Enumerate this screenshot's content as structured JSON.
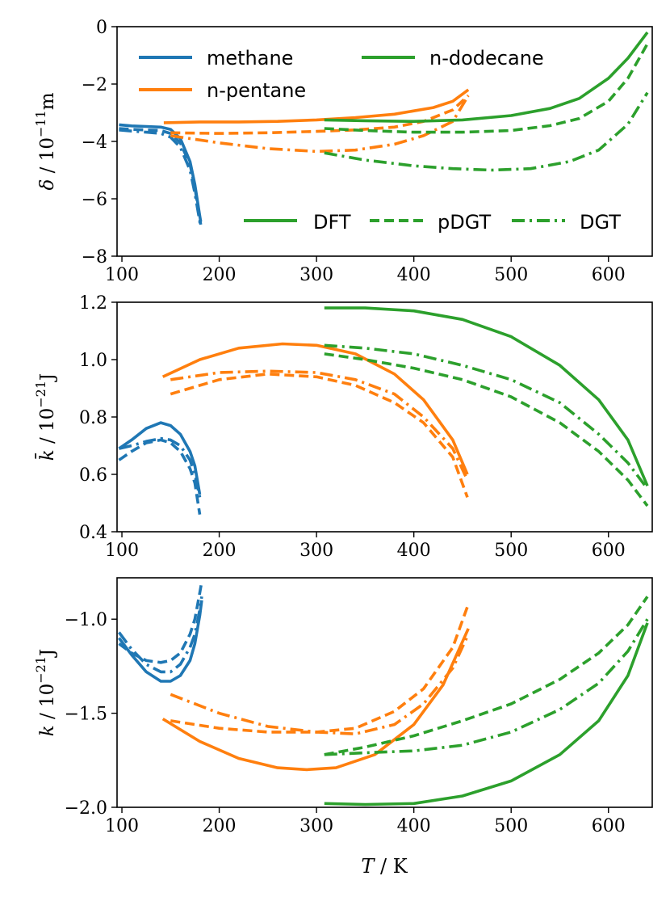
{
  "colors": {
    "methane": "#1f77b4",
    "n-pentane": "#ff7f0e",
    "n-dodecane": "#2ca02c"
  },
  "legend": {
    "substances": [
      "methane",
      "n-pentane",
      "n-dodecane"
    ],
    "methods": [
      "DFT",
      "pDGT",
      "DGT"
    ]
  },
  "chart_data": [
    {
      "type": "line",
      "title": "",
      "ylabel": "δ / 10^-11 m",
      "xlabel": "",
      "xlim": [
        95,
        645
      ],
      "ylim": [
        -8,
        0
      ],
      "xticks": [
        "100",
        "200",
        "300",
        "400",
        "500",
        "600"
      ],
      "yticks": [
        "−8",
        "−6",
        "−4",
        "−2",
        "0"
      ],
      "series": [
        {
          "substance": "methane",
          "method": "DFT",
          "x": [
            97,
            110,
            125,
            140,
            150,
            160,
            170,
            175,
            180,
            181
          ],
          "y": [
            -3.42,
            -3.46,
            -3.48,
            -3.5,
            -3.58,
            -3.9,
            -4.7,
            -5.5,
            -6.6,
            -6.8
          ]
        },
        {
          "substance": "methane",
          "method": "pDGT",
          "x": [
            97,
            110,
            125,
            140,
            150,
            160,
            170,
            175,
            180,
            181
          ],
          "y": [
            -3.55,
            -3.58,
            -3.6,
            -3.62,
            -3.72,
            -4.05,
            -4.8,
            -5.6,
            -6.7,
            -6.9
          ]
        },
        {
          "substance": "methane",
          "method": "DGT",
          "x": [
            97,
            110,
            125,
            140,
            150,
            160,
            170,
            175,
            180,
            181
          ],
          "y": [
            -3.6,
            -3.64,
            -3.68,
            -3.72,
            -3.85,
            -4.2,
            -5.0,
            -5.8,
            -6.8,
            -7.0
          ]
        },
        {
          "substance": "n-pentane",
          "method": "DFT",
          "x": [
            143,
            180,
            220,
            260,
            300,
            340,
            380,
            420,
            440,
            456
          ],
          "y": [
            -3.35,
            -3.32,
            -3.32,
            -3.3,
            -3.25,
            -3.17,
            -3.05,
            -2.82,
            -2.6,
            -2.2
          ]
        },
        {
          "substance": "n-pentane",
          "method": "pDGT",
          "x": [
            150,
            200,
            250,
            300,
            340,
            380,
            410,
            440,
            456
          ],
          "y": [
            -3.7,
            -3.72,
            -3.7,
            -3.65,
            -3.6,
            -3.5,
            -3.3,
            -2.9,
            -2.4
          ]
        },
        {
          "substance": "n-pentane",
          "method": "DGT",
          "x": [
            150,
            200,
            250,
            300,
            340,
            380,
            410,
            440,
            456
          ],
          "y": [
            -3.8,
            -4.05,
            -4.25,
            -4.35,
            -4.3,
            -4.1,
            -3.8,
            -3.3,
            -2.4
          ]
        },
        {
          "substance": "n-dodecane",
          "method": "DFT",
          "x": [
            308,
            350,
            400,
            450,
            500,
            540,
            570,
            600,
            620,
            640
          ],
          "y": [
            -3.25,
            -3.28,
            -3.3,
            -3.25,
            -3.1,
            -2.85,
            -2.5,
            -1.8,
            -1.1,
            -0.2
          ]
        },
        {
          "substance": "n-dodecane",
          "method": "pDGT",
          "x": [
            308,
            350,
            400,
            450,
            500,
            540,
            570,
            600,
            620,
            640
          ],
          "y": [
            -3.55,
            -3.62,
            -3.68,
            -3.68,
            -3.62,
            -3.45,
            -3.2,
            -2.6,
            -1.8,
            -0.6
          ]
        },
        {
          "substance": "n-dodecane",
          "method": "DGT",
          "x": [
            308,
            350,
            400,
            440,
            480,
            520,
            560,
            590,
            620,
            640
          ],
          "y": [
            -4.4,
            -4.65,
            -4.85,
            -4.95,
            -5.0,
            -4.95,
            -4.7,
            -4.3,
            -3.4,
            -2.3
          ]
        }
      ]
    },
    {
      "type": "line",
      "title": "",
      "ylabel": "k̄ / 10^-21 J",
      "xlabel": "",
      "xlim": [
        95,
        645
      ],
      "ylim": [
        0.4,
        1.2
      ],
      "xticks": [
        "100",
        "200",
        "300",
        "400",
        "500",
        "600"
      ],
      "yticks": [
        "0.4",
        "0.6",
        "0.8",
        "1.0",
        "1.2"
      ],
      "series": [
        {
          "substance": "methane",
          "method": "DFT",
          "x": [
            97,
            110,
            125,
            140,
            150,
            160,
            170,
            175,
            180
          ],
          "y": [
            0.69,
            0.72,
            0.76,
            0.78,
            0.77,
            0.74,
            0.68,
            0.63,
            0.53
          ]
        },
        {
          "substance": "methane",
          "method": "pDGT",
          "x": [
            97,
            110,
            125,
            140,
            150,
            160,
            170,
            175,
            180
          ],
          "y": [
            0.65,
            0.68,
            0.71,
            0.72,
            0.71,
            0.68,
            0.62,
            0.57,
            0.46
          ]
        },
        {
          "substance": "methane",
          "method": "DGT",
          "x": [
            97,
            110,
            125,
            140,
            150,
            160,
            170,
            175,
            180
          ],
          "y": [
            0.69,
            0.7,
            0.715,
            0.725,
            0.72,
            0.7,
            0.65,
            0.6,
            0.52
          ]
        },
        {
          "substance": "n-pentane",
          "method": "DFT",
          "x": [
            142,
            180,
            220,
            265,
            300,
            340,
            380,
            410,
            440,
            455
          ],
          "y": [
            0.94,
            1.0,
            1.04,
            1.055,
            1.05,
            1.02,
            0.95,
            0.86,
            0.72,
            0.6
          ]
        },
        {
          "substance": "n-pentane",
          "method": "pDGT",
          "x": [
            150,
            200,
            250,
            300,
            340,
            380,
            410,
            440,
            455
          ],
          "y": [
            0.88,
            0.93,
            0.95,
            0.94,
            0.91,
            0.85,
            0.78,
            0.66,
            0.52
          ]
        },
        {
          "substance": "n-pentane",
          "method": "DGT",
          "x": [
            150,
            200,
            250,
            300,
            340,
            380,
            410,
            440,
            455
          ],
          "y": [
            0.93,
            0.955,
            0.96,
            0.955,
            0.93,
            0.88,
            0.8,
            0.69,
            0.58
          ]
        },
        {
          "substance": "n-dodecane",
          "method": "DFT",
          "x": [
            308,
            350,
            400,
            450,
            500,
            550,
            590,
            620,
            640
          ],
          "y": [
            1.18,
            1.18,
            1.17,
            1.14,
            1.08,
            0.98,
            0.86,
            0.72,
            0.56
          ]
        },
        {
          "substance": "n-dodecane",
          "method": "pDGT",
          "x": [
            308,
            350,
            400,
            450,
            500,
            550,
            590,
            620,
            640
          ],
          "y": [
            1.02,
            1.0,
            0.97,
            0.93,
            0.87,
            0.78,
            0.68,
            0.58,
            0.49
          ]
        },
        {
          "substance": "n-dodecane",
          "method": "DGT",
          "x": [
            308,
            350,
            400,
            450,
            500,
            550,
            590,
            620,
            640
          ],
          "y": [
            1.05,
            1.04,
            1.02,
            0.98,
            0.93,
            0.85,
            0.74,
            0.64,
            0.55
          ]
        }
      ]
    },
    {
      "type": "line",
      "title": "",
      "ylabel": "k / 10^-21 J",
      "xlabel": "T / K",
      "xlim": [
        95,
        645
      ],
      "ylim": [
        -2.0,
        -0.78
      ],
      "xticks": [
        "100",
        "200",
        "300",
        "400",
        "500",
        "600"
      ],
      "yticks": [
        "−2.0",
        "−1.5",
        "−1.0"
      ],
      "series": [
        {
          "substance": "methane",
          "method": "DFT",
          "x": [
            97,
            110,
            125,
            140,
            150,
            160,
            170,
            175,
            180,
            182
          ],
          "y": [
            -1.1,
            -1.19,
            -1.28,
            -1.33,
            -1.33,
            -1.3,
            -1.22,
            -1.13,
            -0.98,
            -0.9
          ]
        },
        {
          "substance": "methane",
          "method": "pDGT",
          "x": [
            97,
            110,
            125,
            140,
            150,
            160,
            170,
            175,
            180,
            182
          ],
          "y": [
            -1.13,
            -1.18,
            -1.22,
            -1.23,
            -1.22,
            -1.18,
            -1.08,
            -1.0,
            -0.86,
            -0.8
          ]
        },
        {
          "substance": "methane",
          "method": "DGT",
          "x": [
            97,
            110,
            125,
            140,
            150,
            160,
            170,
            175,
            180,
            182
          ],
          "y": [
            -1.07,
            -1.16,
            -1.24,
            -1.28,
            -1.28,
            -1.24,
            -1.15,
            -1.08,
            -0.95,
            -0.88
          ]
        },
        {
          "substance": "n-pentane",
          "method": "DFT",
          "x": [
            142,
            180,
            220,
            260,
            290,
            320,
            360,
            400,
            430,
            456
          ],
          "y": [
            -1.53,
            -1.65,
            -1.74,
            -1.79,
            -1.8,
            -1.79,
            -1.72,
            -1.56,
            -1.35,
            -1.05
          ]
        },
        {
          "substance": "n-pentane",
          "method": "pDGT",
          "x": [
            150,
            200,
            250,
            300,
            340,
            380,
            410,
            440,
            456
          ],
          "y": [
            -1.54,
            -1.58,
            -1.6,
            -1.6,
            -1.58,
            -1.49,
            -1.37,
            -1.15,
            -0.92
          ]
        },
        {
          "substance": "n-pentane",
          "method": "DGT",
          "x": [
            150,
            200,
            250,
            300,
            340,
            380,
            410,
            440,
            456
          ],
          "y": [
            -1.4,
            -1.5,
            -1.57,
            -1.6,
            -1.61,
            -1.56,
            -1.45,
            -1.26,
            -1.08
          ]
        },
        {
          "substance": "n-dodecane",
          "method": "DFT",
          "x": [
            308,
            350,
            400,
            450,
            500,
            550,
            590,
            620,
            640
          ],
          "y": [
            -1.98,
            -1.985,
            -1.98,
            -1.94,
            -1.86,
            -1.72,
            -1.54,
            -1.3,
            -1.02
          ]
        },
        {
          "substance": "n-dodecane",
          "method": "pDGT",
          "x": [
            308,
            350,
            400,
            450,
            500,
            550,
            590,
            620,
            640
          ],
          "y": [
            -1.72,
            -1.68,
            -1.62,
            -1.54,
            -1.45,
            -1.32,
            -1.18,
            -1.03,
            -0.88
          ]
        },
        {
          "substance": "n-dodecane",
          "method": "DGT",
          "x": [
            308,
            350,
            400,
            450,
            500,
            550,
            590,
            620,
            640
          ],
          "y": [
            -1.72,
            -1.71,
            -1.7,
            -1.67,
            -1.6,
            -1.48,
            -1.34,
            -1.17,
            -1.0
          ]
        }
      ]
    }
  ]
}
